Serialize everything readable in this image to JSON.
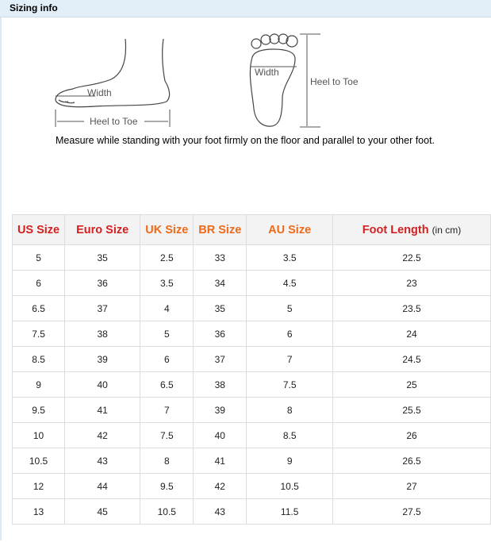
{
  "header": {
    "title": "Sizing info"
  },
  "diagram": {
    "side_width": "Width",
    "side_length": "Heel to Toe",
    "sole_width": "Width",
    "sole_length": "Heel to Toe",
    "caption": "Measure while standing with your foot firmly on the floor and parallel to your other foot."
  },
  "table": {
    "columns": [
      "US Size",
      "Euro Size",
      "UK Size",
      "BR Size",
      "AU Size",
      "Foot Length"
    ],
    "unit": "(in cm)",
    "rows": [
      [
        "5",
        "35",
        "2.5",
        "33",
        "3.5",
        "22.5"
      ],
      [
        "6",
        "36",
        "3.5",
        "34",
        "4.5",
        "23"
      ],
      [
        "6.5",
        "37",
        "4",
        "35",
        "5",
        "23.5"
      ],
      [
        "7.5",
        "38",
        "5",
        "36",
        "6",
        "24"
      ],
      [
        "8.5",
        "39",
        "6",
        "37",
        "7",
        "24.5"
      ],
      [
        "9",
        "40",
        "6.5",
        "38",
        "7.5",
        "25"
      ],
      [
        "9.5",
        "41",
        "7",
        "39",
        "8",
        "25.5"
      ],
      [
        "10",
        "42",
        "7.5",
        "40",
        "8.5",
        "26"
      ],
      [
        "10.5",
        "43",
        "8",
        "41",
        "9",
        "26.5"
      ],
      [
        "12",
        "44",
        "9.5",
        "42",
        "10.5",
        "27"
      ],
      [
        "13",
        "45",
        "10.5",
        "43",
        "11.5",
        "27.5"
      ]
    ]
  }
}
